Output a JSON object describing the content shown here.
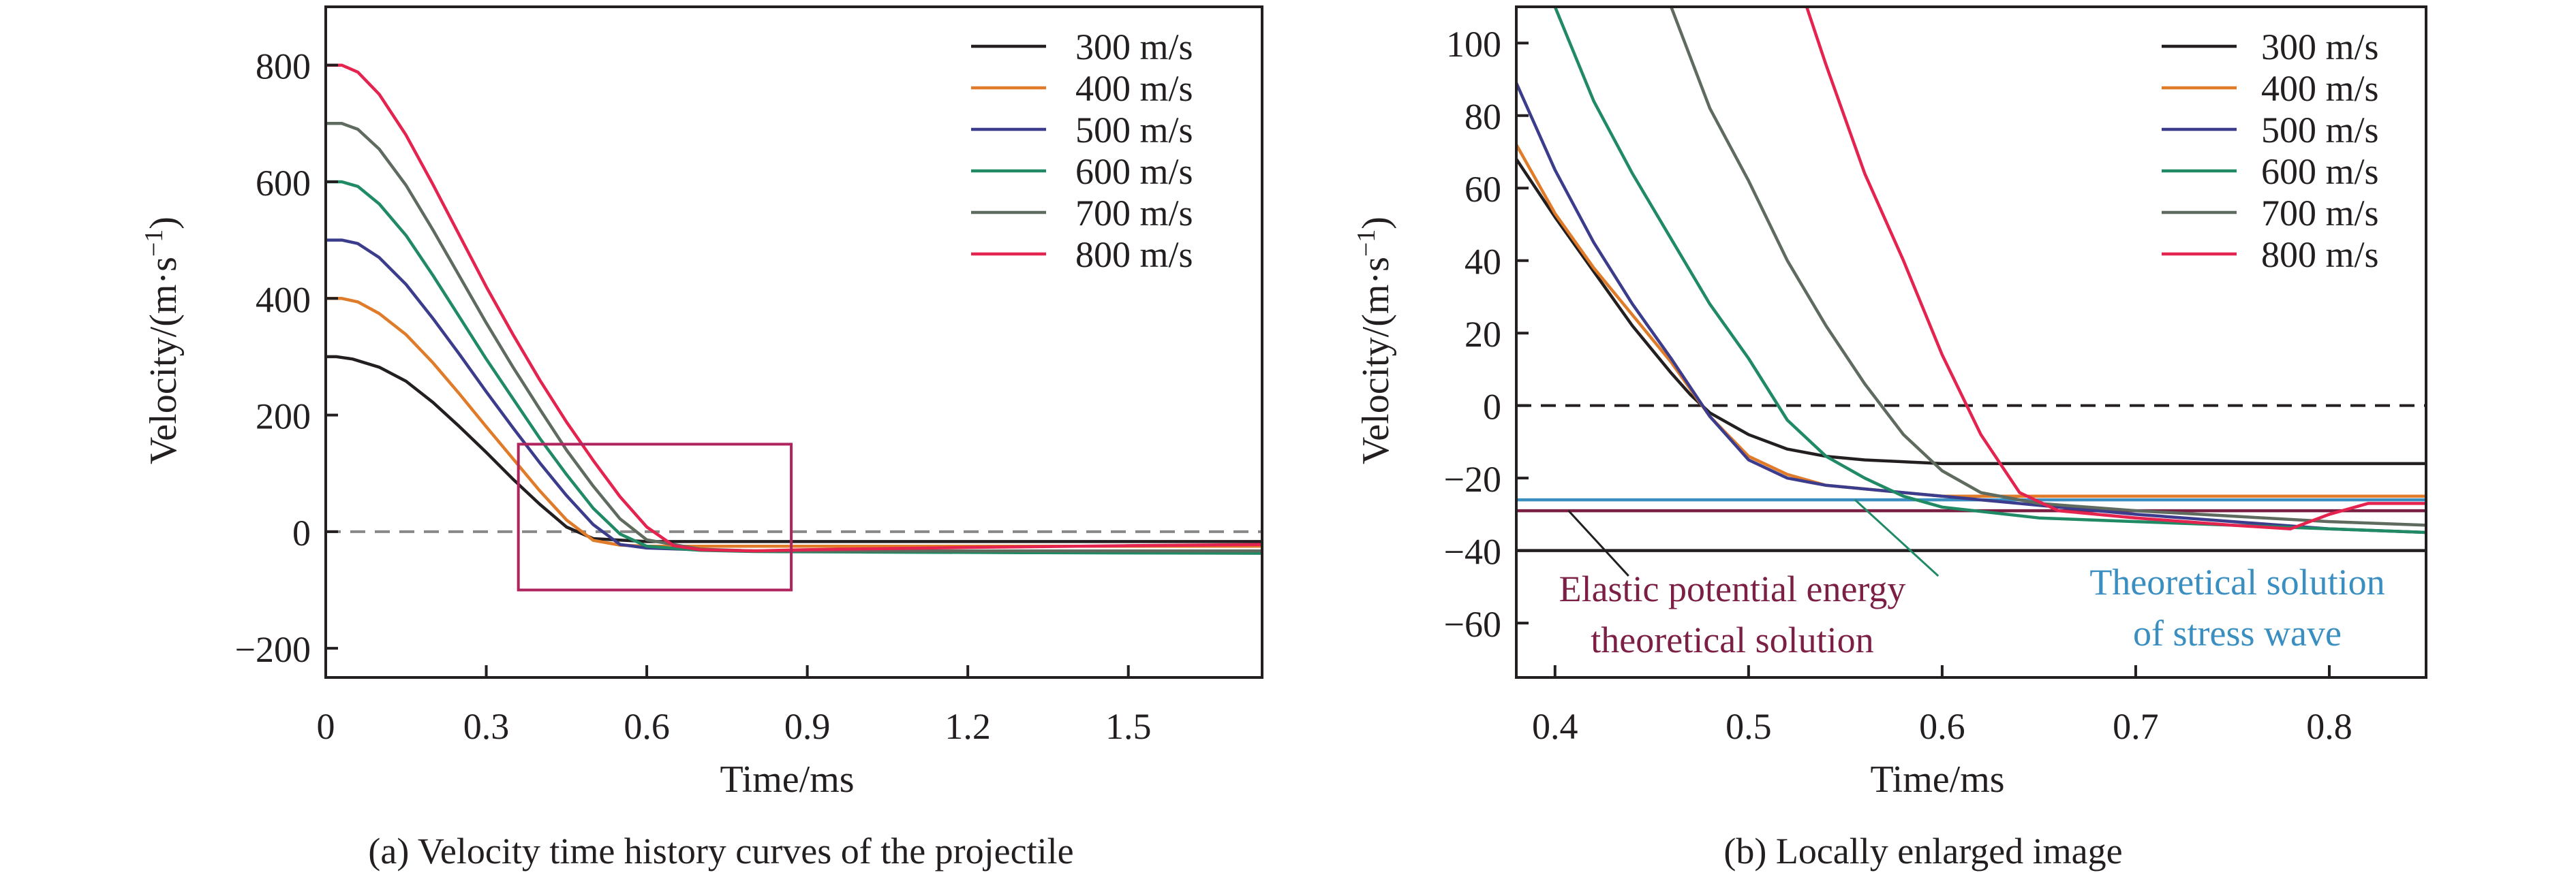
{
  "charts": [
    {
      "caption": "(a) Velocity time history curves of the projectile",
      "xlabel": "Time/ms",
      "ylabel_main": "Velocity/(m·s",
      "ylabel_sup": "−1",
      "ylabel_close": ")",
      "xticks": [
        "0",
        "0.3",
        "0.6",
        "0.9",
        "1.2",
        "1.5"
      ],
      "yticks": [
        "−200",
        "0",
        "200",
        "400",
        "600",
        "800"
      ],
      "legend": [
        "300 m/s",
        "400 m/s",
        "500 m/s",
        "600 m/s",
        "700 m/s",
        "800 m/s"
      ]
    },
    {
      "caption": "(b) Locally enlarged image",
      "xlabel": "Time/ms",
      "ylabel_main": "Velocity/(m·s",
      "ylabel_sup": "−1",
      "ylabel_close": ")",
      "xticks": [
        "0.4",
        "0.5",
        "0.6",
        "0.7",
        "0.8"
      ],
      "yticks": [
        "−60",
        "−40",
        "−20",
        "0",
        "20",
        "40",
        "60",
        "80",
        "100"
      ],
      "legend": [
        "300 m/s",
        "400 m/s",
        "500 m/s",
        "600 m/s",
        "700 m/s",
        "800 m/s"
      ],
      "annotations": {
        "elastic_line1": "Elastic potential energy",
        "elastic_line2": "theoretical solution",
        "stress_line1": "Theoretical solution",
        "stress_line2": "of stress wave"
      }
    }
  ],
  "colors": {
    "s300": "#231f20",
    "s400": "#e07b2a",
    "s500": "#3b3d8c",
    "s600": "#5f6b5f",
    "s700": "#2c2c2c",
    "s800": "#e4234f",
    "green": "#1f8a64",
    "box": "#b0245e",
    "elastic": "#7b1f45",
    "stress": "#3a8fc0",
    "dashed": "#888888"
  },
  "chart_data": [
    {
      "type": "line",
      "xlabel": "Time/ms",
      "ylabel": "Velocity/(m·s−1)",
      "xlim": [
        0,
        1.75
      ],
      "ylim": [
        -250,
        900
      ],
      "legend_position": "top-right",
      "grid": false,
      "zoom_box": {
        "x": [
          0.36,
          0.87
        ],
        "y": [
          -100,
          150
        ]
      },
      "reference_lines": [
        {
          "y": 0,
          "style": "dashed"
        }
      ],
      "series": [
        {
          "name": "300 m/s",
          "color": "#231f20",
          "x": [
            0,
            0.02,
            0.05,
            0.1,
            0.15,
            0.2,
            0.25,
            0.3,
            0.35,
            0.4,
            0.45,
            0.5,
            0.6,
            0.8,
            1.0,
            1.2,
            1.5,
            1.75
          ],
          "y": [
            300,
            300,
            296,
            282,
            258,
            222,
            180,
            136,
            90,
            47,
            8,
            -12,
            -17,
            -17,
            -17,
            -17,
            -17,
            -17
          ]
        },
        {
          "name": "400 m/s",
          "color": "#e07b2a",
          "x": [
            0,
            0.03,
            0.06,
            0.1,
            0.15,
            0.2,
            0.25,
            0.3,
            0.35,
            0.4,
            0.45,
            0.5,
            0.55,
            0.6,
            0.8,
            1.0,
            1.3,
            1.75
          ],
          "y": [
            400,
            400,
            394,
            374,
            338,
            290,
            236,
            180,
            125,
            70,
            20,
            -15,
            -23,
            -25,
            -25,
            -25,
            -25,
            -25
          ]
        },
        {
          "name": "500 m/s",
          "color": "#3b3d8c",
          "x": [
            0,
            0.03,
            0.06,
            0.1,
            0.15,
            0.2,
            0.25,
            0.3,
            0.35,
            0.4,
            0.45,
            0.5,
            0.55,
            0.6,
            0.7,
            0.8,
            1.0,
            1.3,
            1.75
          ],
          "y": [
            500,
            500,
            494,
            470,
            424,
            366,
            304,
            240,
            178,
            118,
            62,
            12,
            -22,
            -28,
            -31,
            -33,
            -34,
            -35,
            -36
          ]
        },
        {
          "name": "600 m/s",
          "color": "#1f8a64",
          "x": [
            0,
            0.03,
            0.06,
            0.1,
            0.15,
            0.2,
            0.25,
            0.3,
            0.35,
            0.4,
            0.45,
            0.5,
            0.55,
            0.6,
            0.7,
            0.8,
            1.0,
            1.3,
            1.75
          ],
          "y": [
            600,
            600,
            592,
            562,
            508,
            440,
            368,
            296,
            228,
            160,
            98,
            40,
            -4,
            -25,
            -32,
            -34,
            -35,
            -36,
            -37
          ]
        },
        {
          "name": "700 m/s",
          "color": "#5f6b5f",
          "x": [
            0,
            0.03,
            0.06,
            0.1,
            0.15,
            0.2,
            0.25,
            0.3,
            0.35,
            0.4,
            0.45,
            0.5,
            0.55,
            0.6,
            0.7,
            0.8,
            1.0,
            1.3,
            1.75
          ],
          "y": [
            700,
            700,
            690,
            656,
            594,
            518,
            438,
            358,
            282,
            210,
            140,
            78,
            22,
            -14,
            -30,
            -33,
            -33,
            -33,
            -33
          ]
        },
        {
          "name": "800 m/s",
          "color": "#e4234f",
          "x": [
            0,
            0.03,
            0.06,
            0.1,
            0.15,
            0.2,
            0.25,
            0.3,
            0.35,
            0.4,
            0.45,
            0.5,
            0.55,
            0.6,
            0.65,
            0.7,
            0.8,
            0.9,
            1.2,
            1.5,
            1.75
          ],
          "y": [
            800,
            800,
            788,
            750,
            680,
            596,
            508,
            420,
            338,
            260,
            188,
            122,
            60,
            8,
            -24,
            -31,
            -33,
            -31,
            -27,
            -24,
            -22
          ]
        }
      ]
    },
    {
      "type": "line",
      "xlabel": "Time/ms",
      "ylabel": "Velocity/(m·s−1)",
      "xlim": [
        0.38,
        0.85
      ],
      "ylim": [
        -75,
        110
      ],
      "legend_position": "top-right",
      "grid": false,
      "reference_lines": [
        {
          "y": 0,
          "style": "dashed",
          "color": "#231f20"
        },
        {
          "y": -29,
          "label": "Elastic potential energy theoretical solution",
          "color": "#7b1f45"
        },
        {
          "y": -26,
          "label": "Theoretical solution of stress wave",
          "color": "#3a8fc0"
        },
        {
          "y": -40,
          "color": "#231f20"
        }
      ],
      "series": [
        {
          "name": "300 m/s",
          "color": "#231f20",
          "x": [
            0.38,
            0.4,
            0.42,
            0.44,
            0.46,
            0.47,
            0.48,
            0.5,
            0.52,
            0.54,
            0.56,
            0.6,
            0.7,
            0.85
          ],
          "y": [
            68,
            52,
            37,
            22,
            9,
            3,
            -2,
            -8,
            -12,
            -14,
            -15,
            -16,
            -16,
            -16
          ]
        },
        {
          "name": "400 m/s",
          "color": "#e07b2a",
          "x": [
            0.38,
            0.4,
            0.42,
            0.44,
            0.46,
            0.48,
            0.5,
            0.52,
            0.54,
            0.56,
            0.58,
            0.6,
            0.7,
            0.85
          ],
          "y": [
            72,
            53,
            38,
            25,
            12,
            -3,
            -14,
            -19,
            -22,
            -23,
            -24,
            -25,
            -25,
            -25
          ]
        },
        {
          "name": "500 m/s",
          "color": "#3b3d8c",
          "x": [
            0.38,
            0.4,
            0.42,
            0.44,
            0.46,
            0.48,
            0.5,
            0.52,
            0.54,
            0.56,
            0.6,
            0.7,
            0.8,
            0.85
          ],
          "y": [
            89,
            65,
            45,
            28,
            13,
            -3,
            -15,
            -20,
            -22,
            -23,
            -25,
            -30,
            -34,
            -35
          ]
        },
        {
          "name": "600 m/s",
          "color": "#1f8a64",
          "x": [
            0.4,
            0.42,
            0.44,
            0.46,
            0.48,
            0.5,
            0.52,
            0.54,
            0.56,
            0.58,
            0.6,
            0.65,
            0.7,
            0.8,
            0.85
          ],
          "y": [
            110,
            84,
            64,
            46,
            28,
            13,
            -4,
            -14,
            -20,
            -25,
            -28,
            -31,
            -32,
            -34,
            -35
          ]
        },
        {
          "name": "700 m/s",
          "color": "#5f6b5f",
          "x": [
            0.46,
            0.48,
            0.5,
            0.52,
            0.54,
            0.56,
            0.58,
            0.6,
            0.62,
            0.65,
            0.7,
            0.8,
            0.85
          ],
          "y": [
            110,
            82,
            62,
            40,
            22,
            6,
            -8,
            -18,
            -24,
            -27,
            -29,
            -32,
            -33
          ]
        },
        {
          "name": "800 m/s",
          "color": "#e4234f",
          "x": [
            0.53,
            0.54,
            0.56,
            0.58,
            0.6,
            0.62,
            0.64,
            0.66,
            0.7,
            0.75,
            0.78,
            0.8,
            0.82,
            0.85
          ],
          "y": [
            110,
            94,
            64,
            40,
            14,
            -8,
            -24,
            -29,
            -31,
            -33,
            -34,
            -30,
            -27,
            -27
          ]
        }
      ]
    }
  ]
}
